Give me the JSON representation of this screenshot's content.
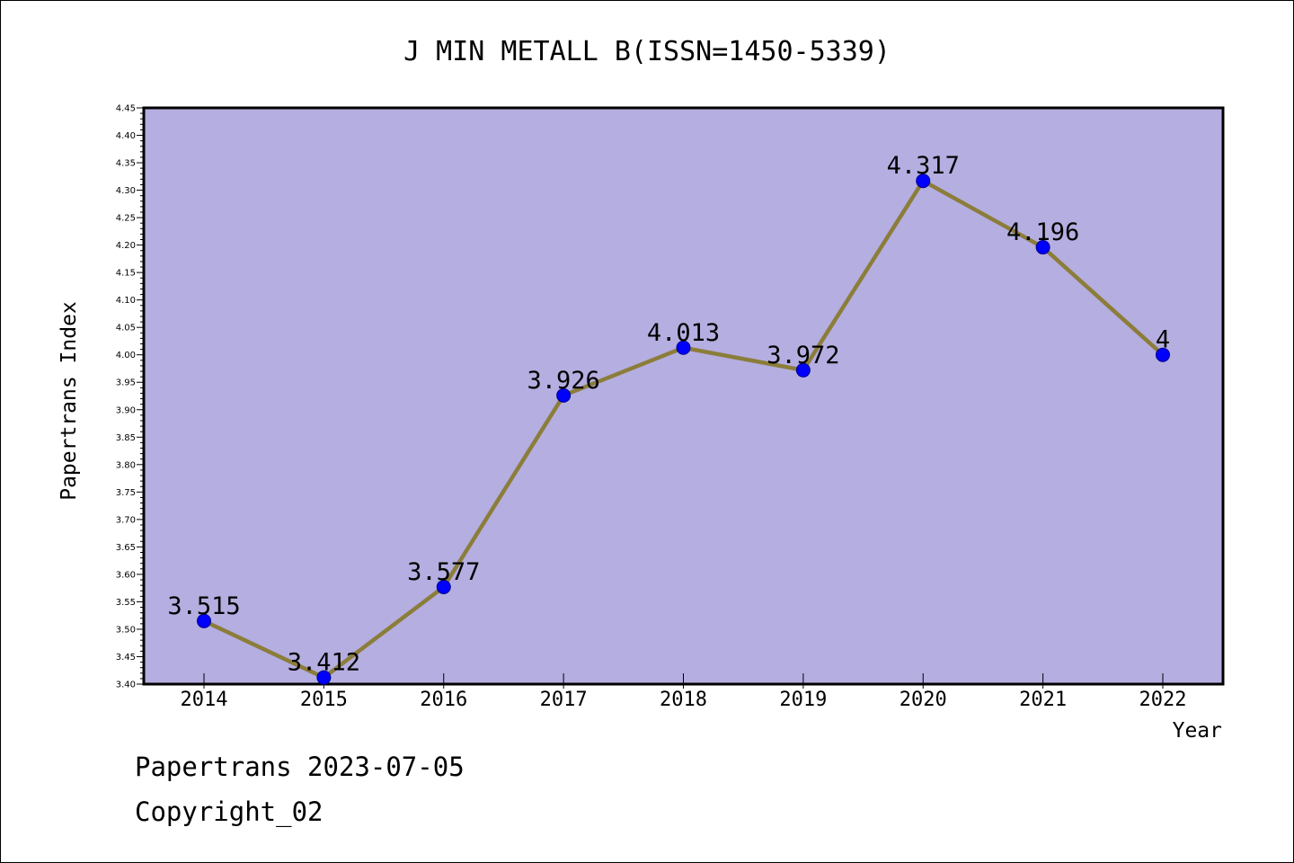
{
  "chart_data": {
    "type": "line",
    "title": "J MIN METALL B(ISSN=1450-5339)",
    "xlabel": "Year",
    "ylabel": "Papertrans Index",
    "ylim": [
      3.4,
      4.45
    ],
    "y_ticks": [
      "3.40",
      "3.45",
      "3.50",
      "3.55",
      "3.60",
      "3.65",
      "3.70",
      "3.75",
      "3.80",
      "3.85",
      "3.90",
      "3.95",
      "4.00",
      "4.05",
      "4.10",
      "4.15",
      "4.20",
      "4.25",
      "4.30",
      "4.35",
      "4.40",
      "4.45"
    ],
    "x": [
      "2014",
      "2015",
      "2016",
      "2017",
      "2018",
      "2019",
      "2020",
      "2021",
      "2022"
    ],
    "series": [
      {
        "values": [
          3.515,
          3.412,
          3.577,
          3.926,
          4.013,
          3.972,
          4.317,
          4.196,
          4
        ],
        "labels": [
          "3.515",
          "3.412",
          "3.577",
          "3.926",
          "4.013",
          "3.972",
          "4.317",
          "4.196",
          "4"
        ],
        "line_color": "#8b7d3a",
        "marker_color": "#0000ff"
      }
    ],
    "background_color": "#b5aee1",
    "grid": false,
    "legend": "none"
  },
  "footer": {
    "line1": "Papertrans 2023-07-05",
    "line2": "Copyright_02"
  }
}
